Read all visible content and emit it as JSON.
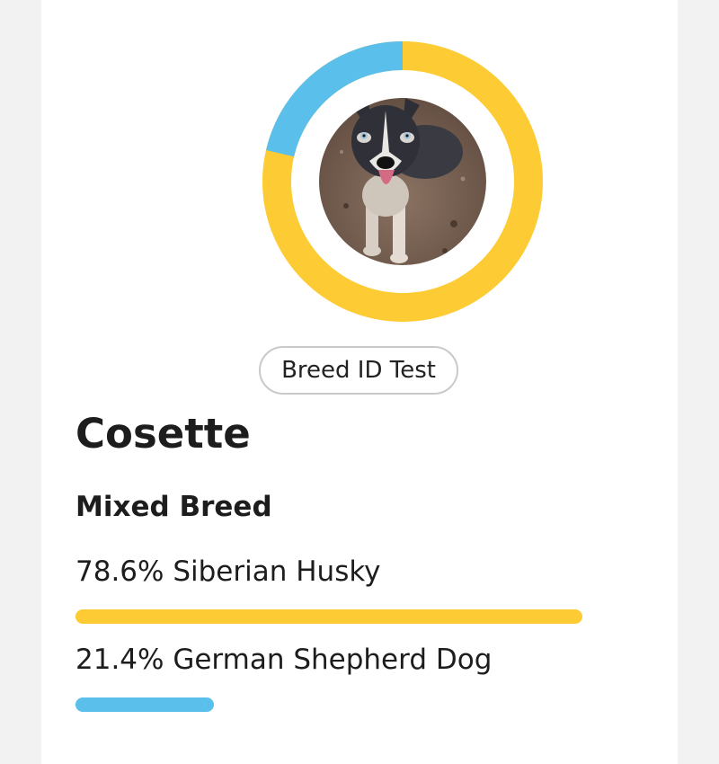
{
  "dog": {
    "name": "Cosette",
    "photo_alt": "dog-photo",
    "test_label": "Breed ID Test",
    "breed_type": "Mixed Breed"
  },
  "breeds": [
    {
      "label": "78.6% Siberian Husky",
      "percent": 78.6,
      "color": "#fdcb33"
    },
    {
      "label": "21.4% German Shepherd Dog",
      "percent": 21.4,
      "color": "#5bbfeb"
    }
  ],
  "colors": {
    "background": "#f2f2f2",
    "card": "#ffffff",
    "primary_breed": "#fdcb33",
    "secondary_breed": "#5bbfeb"
  }
}
